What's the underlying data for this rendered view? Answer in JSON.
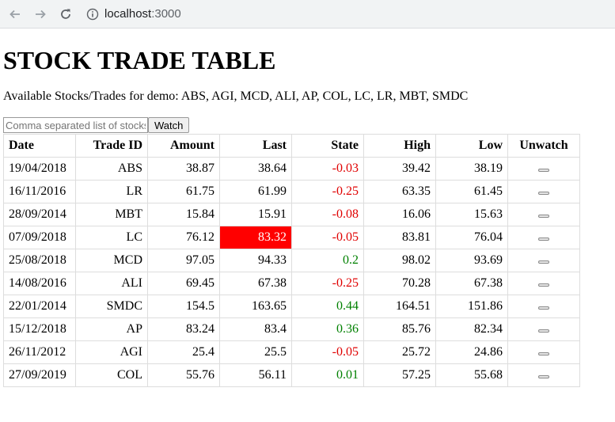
{
  "browser": {
    "host": "localhost",
    "port": ":3000"
  },
  "page": {
    "title": "STOCK TRADE TABLE",
    "subtitle": "Available Stocks/Trades for demo: ABS, AGI, MCD, ALI, AP, COL, LC, LR, MBT, SMDC",
    "input_placeholder": "Comma separated list of stocks",
    "watch_label": "Watch"
  },
  "table": {
    "headers": [
      "Date",
      "Trade ID",
      "Amount",
      "Last",
      "State",
      "High",
      "Low",
      "Unwatch"
    ],
    "rows": [
      {
        "date": "19/04/2018",
        "id": "ABS",
        "amount": "38.87",
        "last": "38.64",
        "state": "-0.03",
        "high": "39.42",
        "low": "38.19"
      },
      {
        "date": "16/11/2016",
        "id": "LR",
        "amount": "61.75",
        "last": "61.99",
        "state": "-0.25",
        "high": "63.35",
        "low": "61.45"
      },
      {
        "date": "28/09/2014",
        "id": "MBT",
        "amount": "15.84",
        "last": "15.91",
        "state": "-0.08",
        "high": "16.06",
        "low": "15.63"
      },
      {
        "date": "07/09/2018",
        "id": "LC",
        "amount": "76.12",
        "last": "83.32",
        "state": "-0.05",
        "high": "83.81",
        "low": "76.04"
      },
      {
        "date": "25/08/2018",
        "id": "MCD",
        "amount": "97.05",
        "last": "94.33",
        "state": "0.2",
        "high": "98.02",
        "low": "93.69"
      },
      {
        "date": "14/08/2016",
        "id": "ALI",
        "amount": "69.45",
        "last": "67.38",
        "state": "-0.25",
        "high": "70.28",
        "low": "67.38"
      },
      {
        "date": "22/01/2014",
        "id": "SMDC",
        "amount": "154.5",
        "last": "163.65",
        "state": "0.44",
        "high": "164.51",
        "low": "151.86"
      },
      {
        "date": "15/12/2018",
        "id": "AP",
        "amount": "83.24",
        "last": "83.4",
        "state": "0.36",
        "high": "85.76",
        "low": "82.34"
      },
      {
        "date": "26/11/2012",
        "id": "AGI",
        "amount": "25.4",
        "last": "25.5",
        "state": "-0.05",
        "high": "25.72",
        "low": "24.86"
      },
      {
        "date": "27/09/2019",
        "id": "COL",
        "amount": "55.76",
        "last": "56.11",
        "state": "0.01",
        "high": "57.25",
        "low": "55.68"
      }
    ],
    "highlighted_last_row": 3
  },
  "colors": {
    "negative": "#e00000",
    "positive": "#008000",
    "highlight": "#ff0000"
  }
}
